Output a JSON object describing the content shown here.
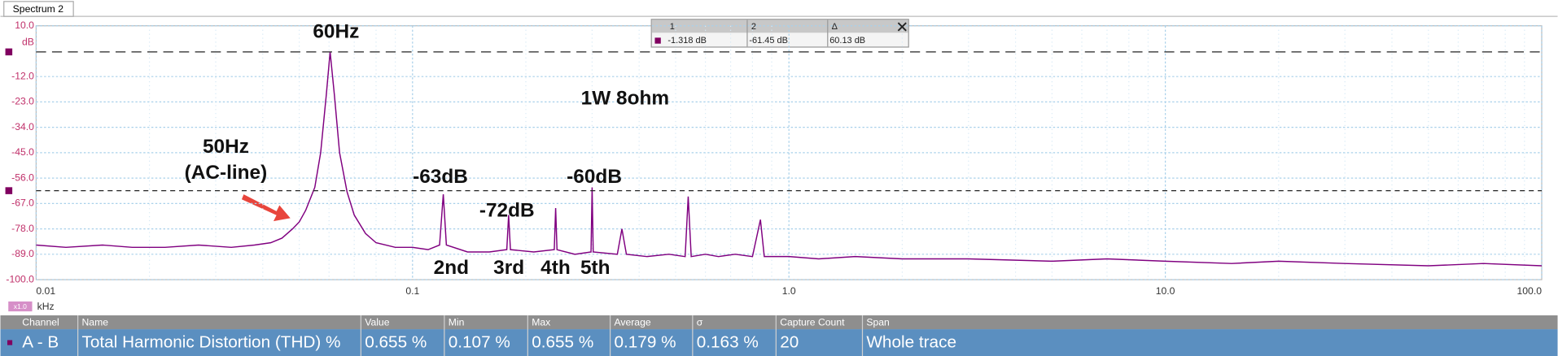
{
  "tab": "Spectrum 2",
  "chart_data": {
    "type": "line",
    "log_x": true,
    "grid": true,
    "color": "#800080",
    "y_unit": "dB",
    "x_unit": "kHz",
    "x_zoom": "x1.0",
    "x": [
      0.01,
      0.012,
      0.015,
      0.018,
      0.022,
      0.027,
      0.033,
      0.038,
      0.042,
      0.045,
      0.048,
      0.05,
      0.052,
      0.055,
      0.057,
      0.059,
      0.0604,
      0.062,
      0.064,
      0.067,
      0.07,
      0.075,
      0.08,
      0.09,
      0.1,
      0.11,
      0.118,
      0.1207,
      0.123,
      0.14,
      0.16,
      0.178,
      0.18,
      0.182,
      0.21,
      0.238,
      0.24,
      0.242,
      0.27,
      0.298,
      0.3,
      0.302,
      0.35,
      0.36,
      0.37,
      0.42,
      0.48,
      0.53,
      0.54,
      0.55,
      0.6,
      0.65,
      0.72,
      0.8,
      0.84,
      0.86,
      1,
      1.2,
      1.5,
      2,
      3,
      5,
      7,
      10,
      15,
      20,
      30,
      50,
      70,
      100
    ],
    "values": [
      -85,
      -86,
      -85,
      -86,
      -86,
      -85,
      -86,
      -85,
      -84,
      -82,
      -78,
      -75,
      -70,
      -60,
      -45,
      -20,
      -1.318,
      -20,
      -45,
      -62,
      -72,
      -80,
      -84,
      -86,
      -86,
      -87,
      -85,
      -63,
      -85,
      -88,
      -88,
      -87,
      -72,
      -87,
      -88,
      -87,
      -69,
      -87,
      -89,
      -88,
      -60,
      -88,
      -89,
      -78,
      -89,
      -90,
      -89,
      -90,
      -64,
      -90,
      -89,
      -90,
      -89,
      -90,
      -74,
      -90,
      -90,
      -91,
      -90,
      -91,
      -91,
      -92,
      -91,
      -92,
      -93,
      -92,
      -93,
      -94,
      -93,
      -94
    ],
    "xlim": [
      0.01,
      100
    ],
    "xticks": [
      0.01,
      0.1,
      {
        "value": 1,
        "label": "1.0"
      },
      {
        "value": 10,
        "label": "10.0"
      },
      {
        "value": 100,
        "label": "100.0"
      }
    ],
    "ylim": [
      -100,
      10
    ],
    "yticks": [
      {
        "value": 10,
        "label": "10.0"
      },
      {
        "value": -12,
        "label": "-12.0"
      },
      {
        "value": -23,
        "label": "-23.0"
      },
      {
        "value": -34,
        "label": "-34.0"
      },
      {
        "value": -45,
        "label": "-45.0"
      },
      {
        "value": -56,
        "label": "-56.0"
      },
      {
        "value": -67,
        "label": "-67.0"
      },
      {
        "value": -78,
        "label": "-78.0"
      },
      {
        "value": -89,
        "label": "-89.0"
      },
      {
        "value": -100,
        "label": "-100.0"
      }
    ],
    "annotations": [
      "60Hz",
      "1W 8ohm",
      "50Hz",
      "(AC-line)",
      "-63dB",
      "-72dB",
      "-60dB",
      "2nd",
      "3rd",
      "4th",
      "5th"
    ]
  },
  "cursors": {
    "headers": [
      "1",
      "2",
      "Δ"
    ],
    "values": [
      -1.318,
      -61.45,
      60.13
    ],
    "value_labels": [
      "-1.318 dB",
      "-61.45 dB",
      "60.13 dB"
    ]
  },
  "measurements": {
    "headers": [
      "Channel",
      "Name",
      "Value",
      "Min",
      "Max",
      "Average",
      "σ",
      "Capture Count",
      "Span"
    ],
    "rows": [
      [
        "A - B",
        "Total Harmonic Distortion (THD) %",
        "0.655 %",
        "0.107 %",
        "0.655 %",
        "0.179 %",
        "0.163 %",
        "20",
        "Whole trace"
      ]
    ]
  }
}
